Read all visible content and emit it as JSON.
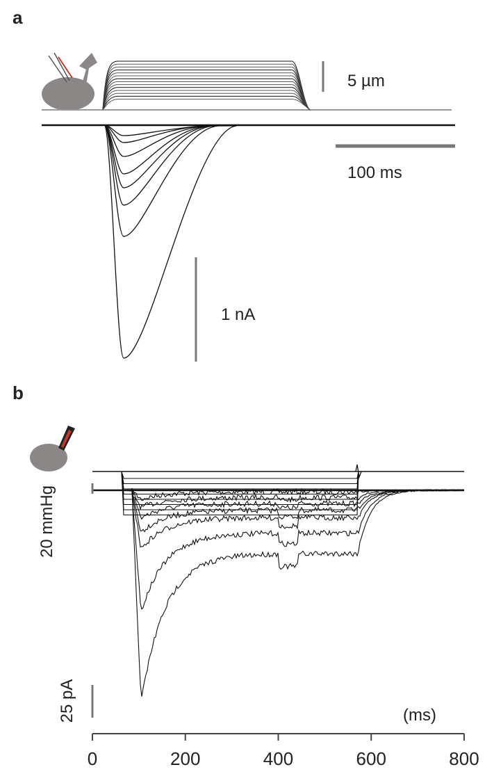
{
  "panels": [
    {
      "label": "a",
      "scale_bars": [
        "5 µm",
        "100 ms",
        "1 nA"
      ]
    },
    {
      "label": "b",
      "scale_bars": [
        "20 mmHg",
        "25 pA"
      ],
      "x_axis": {
        "label": "(ms)",
        "xlim": [
          0,
          800
        ],
        "xticks": [
          0,
          200,
          400,
          600,
          800
        ]
      }
    }
  ]
}
